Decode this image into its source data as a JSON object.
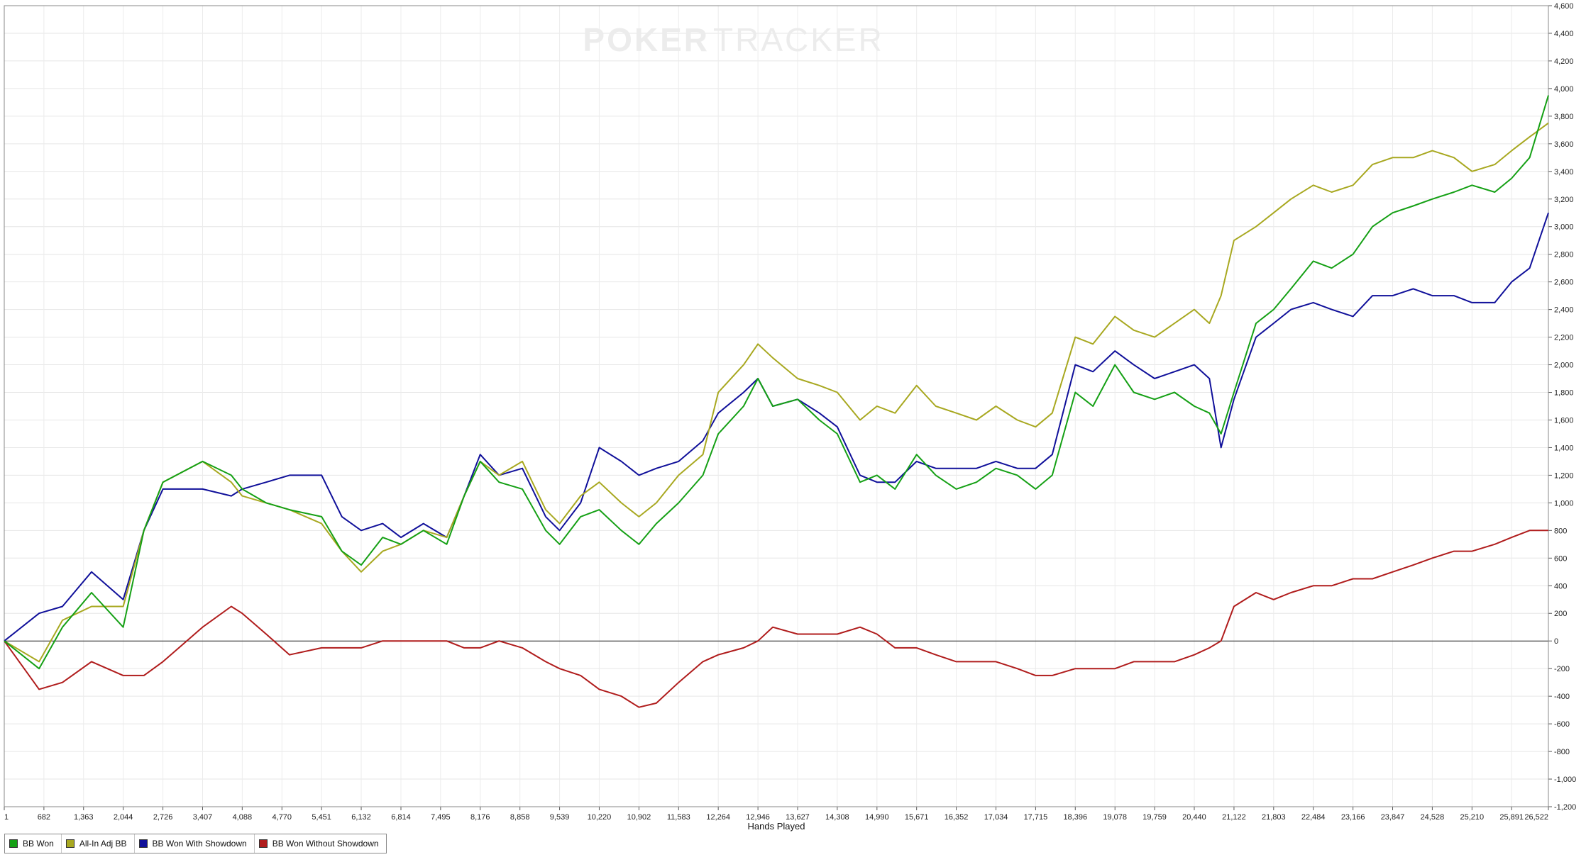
{
  "watermark": {
    "part1": "POKER",
    "part2": "TRACKER"
  },
  "chart_data": {
    "type": "line",
    "xlabel": "Hands Played",
    "ylabel": "",
    "xlim": [
      1,
      26522
    ],
    "ylim": [
      -1200,
      4600
    ],
    "x_ticks": [
      "1",
      "682",
      "1,363",
      "2,044",
      "2,726",
      "3,407",
      "4,088",
      "4,770",
      "5,451",
      "6,132",
      "6,814",
      "7,495",
      "8,176",
      "8,858",
      "9,539",
      "10,220",
      "10,902",
      "11,583",
      "12,264",
      "12,946",
      "13,627",
      "14,308",
      "14,990",
      "15,671",
      "16,352",
      "17,034",
      "17,715",
      "18,396",
      "19,078",
      "19,759",
      "20,440",
      "21,122",
      "21,803",
      "22,484",
      "23,166",
      "23,847",
      "24,528",
      "25,210",
      "25,891",
      "26,522"
    ],
    "y_ticks": [
      "4,600",
      "4,400",
      "4,200",
      "4,000",
      "3,800",
      "3,600",
      "3,400",
      "3,200",
      "3,000",
      "2,800",
      "2,600",
      "2,400",
      "2,200",
      "2,000",
      "1,800",
      "1,600",
      "1,400",
      "1,200",
      "1,000",
      "800",
      "600",
      "400",
      "200",
      "0",
      "-200",
      "-400",
      "-600",
      "-800",
      "-1,000",
      "-1,200"
    ],
    "grid": true,
    "legend_position": "bottom-left",
    "x": [
      1,
      600,
      1000,
      1500,
      2044,
      2400,
      2726,
      3407,
      3900,
      4088,
      4500,
      4900,
      5451,
      5800,
      6132,
      6500,
      6814,
      7200,
      7600,
      7900,
      8176,
      8500,
      8900,
      9300,
      9539,
      9900,
      10220,
      10600,
      10902,
      11200,
      11583,
      12000,
      12264,
      12700,
      12946,
      13200,
      13627,
      14000,
      14308,
      14700,
      14990,
      15300,
      15671,
      16000,
      16352,
      16700,
      17034,
      17400,
      17715,
      18000,
      18396,
      18700,
      19078,
      19400,
      19759,
      20100,
      20440,
      20700,
      20900,
      21122,
      21500,
      21803,
      22100,
      22484,
      22800,
      23166,
      23500,
      23847,
      24200,
      24528,
      24900,
      25210,
      25600,
      25891,
      26200,
      26522
    ],
    "series": [
      {
        "name": "BB Won",
        "color": "#15a015",
        "values": [
          0,
          -200,
          100,
          350,
          100,
          800,
          1150,
          1300,
          1200,
          1100,
          1000,
          950,
          900,
          650,
          550,
          750,
          700,
          800,
          700,
          1050,
          1300,
          1150,
          1100,
          800,
          700,
          900,
          950,
          800,
          700,
          850,
          1000,
          1200,
          1500,
          1700,
          1900,
          1700,
          1750,
          1600,
          1500,
          1150,
          1200,
          1100,
          1350,
          1200,
          1100,
          1150,
          1250,
          1200,
          1100,
          1200,
          1800,
          1700,
          2000,
          1800,
          1750,
          1800,
          1700,
          1650,
          1500,
          1800,
          2300,
          2400,
          2550,
          2750,
          2700,
          2800,
          3000,
          3100,
          3150,
          3200,
          3250,
          3300,
          3250,
          3350,
          3500,
          3950
        ]
      },
      {
        "name": "All-In Adj BB",
        "color": "#a8a820",
        "values": [
          0,
          -150,
          150,
          250,
          250,
          800,
          1150,
          1300,
          1150,
          1050,
          1000,
          950,
          850,
          650,
          500,
          650,
          700,
          800,
          750,
          1050,
          1300,
          1200,
          1300,
          950,
          850,
          1050,
          1150,
          1000,
          900,
          1000,
          1200,
          1350,
          1800,
          2000,
          2150,
          2050,
          1900,
          1850,
          1800,
          1600,
          1700,
          1650,
          1850,
          1700,
          1650,
          1600,
          1700,
          1600,
          1550,
          1650,
          2200,
          2150,
          2350,
          2250,
          2200,
          2300,
          2400,
          2300,
          2500,
          2900,
          3000,
          3100,
          3200,
          3300,
          3250,
          3300,
          3450,
          3500,
          3500,
          3550,
          3500,
          3400,
          3450,
          3550,
          3650,
          3750
        ]
      },
      {
        "name": "BB Won With Showdown",
        "color": "#10109a",
        "values": [
          0,
          200,
          250,
          500,
          300,
          800,
          1100,
          1100,
          1050,
          1100,
          1150,
          1200,
          1200,
          900,
          800,
          850,
          750,
          850,
          750,
          1050,
          1350,
          1200,
          1250,
          900,
          800,
          1000,
          1400,
          1300,
          1200,
          1250,
          1300,
          1450,
          1650,
          1800,
          1900,
          1700,
          1750,
          1650,
          1550,
          1200,
          1150,
          1150,
          1300,
          1250,
          1250,
          1250,
          1300,
          1250,
          1250,
          1350,
          2000,
          1950,
          2100,
          2000,
          1900,
          1950,
          2000,
          1900,
          1400,
          1750,
          2200,
          2300,
          2400,
          2450,
          2400,
          2350,
          2500,
          2500,
          2550,
          2500,
          2500,
          2450,
          2450,
          2600,
          2700,
          3100
        ]
      },
      {
        "name": "BB Won Without Showdown",
        "color": "#b01c1c",
        "values": [
          0,
          -350,
          -300,
          -150,
          -250,
          -250,
          -150,
          100,
          250,
          200,
          50,
          -100,
          -50,
          -50,
          -50,
          0,
          0,
          0,
          0,
          -50,
          -50,
          0,
          -50,
          -150,
          -200,
          -250,
          -350,
          -400,
          -480,
          -450,
          -300,
          -150,
          -100,
          -50,
          0,
          100,
          50,
          50,
          50,
          100,
          50,
          -50,
          -50,
          -100,
          -150,
          -150,
          -150,
          -200,
          -250,
          -250,
          -200,
          -200,
          -200,
          -150,
          -150,
          -150,
          -100,
          -50,
          0,
          250,
          350,
          300,
          350,
          400,
          400,
          450,
          450,
          500,
          550,
          600,
          650,
          650,
          700,
          750,
          800,
          800
        ]
      }
    ]
  }
}
